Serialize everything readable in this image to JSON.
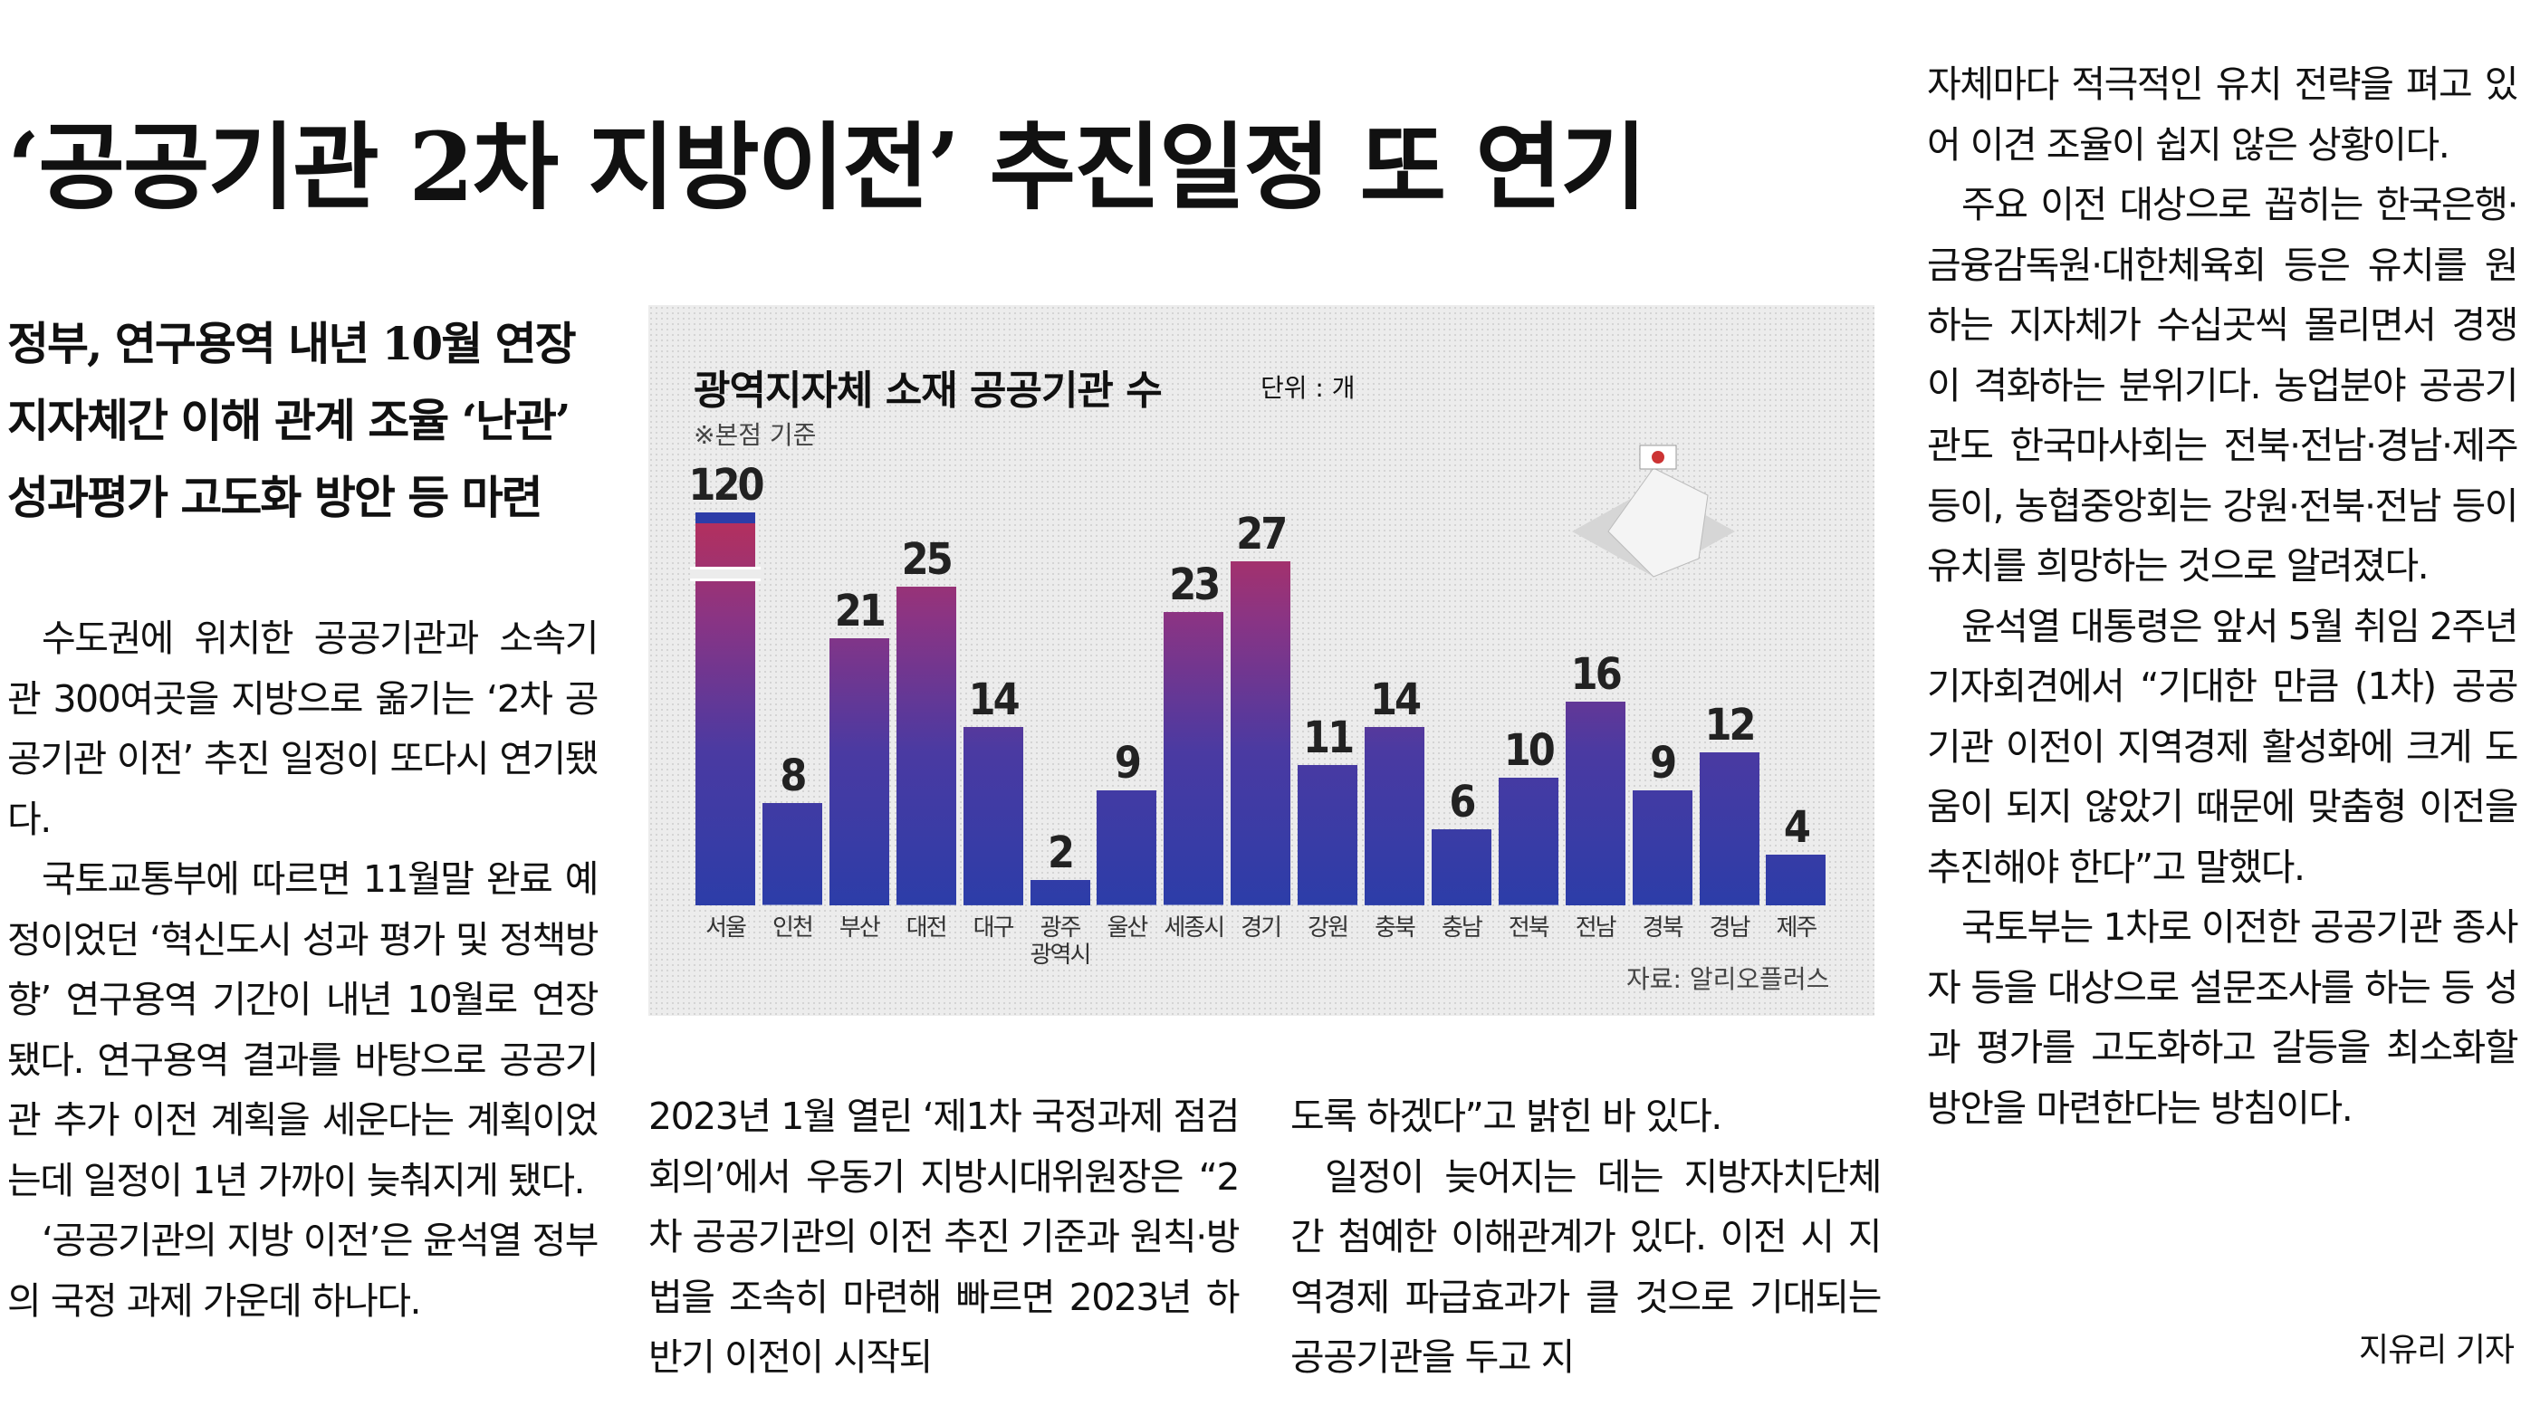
{
  "headline": "‘공공기관 2차 지방이전’ 추진일정 또 연기",
  "subheads": [
    "정부, 연구용역 내년 10월 연장",
    "지자체간 이해 관계 조율 ‘난관’",
    "성과평가 고도화 방안 등 마련"
  ],
  "columns": [
    [
      "수도권에 위치한 공공기관과 소속기관 300여곳을 지방으로 옮기는 ‘2차 공공기관 이전’ 추진 일정이 또다시 연기됐다.",
      "국토교통부에 따르면 11월말 완료 예정이었던 ‘혁신도시 성과 평가 및 정책방향’ 연구용역 기간이 내년 10월로 연장됐다. 연구용역 결과를 바탕으로 공공기관 추가 이전 계획을 세운다는 계획이었는데 일정이 1년 가까이 늦춰지게 됐다.",
      "‘공공기관의 지방 이전’은 윤석열 정부의 국정 과제 가운데 하나다."
    ],
    [
      "2023년 1월 열린 ‘제1차 국정과제 점검회의’에서 우동기 지방시대위원장은 “2차 공공기관의 이전 추진 기준과 원칙·방법을 조속히 마련해 빠르면 2023년 하반기 이전이 시작되"
    ],
    [
      "도록 하겠다”고 밝힌 바 있다.",
      "일정이 늦어지는 데는 지방자치단체간 첨예한 이해관계가 있다. 이전 시 지역경제 파급효과가 클 것으로 기대되는 공공기관을 두고 지"
    ],
    [
      "자체마다 적극적인 유치 전략을 펴고 있어 이견 조율이 쉽지 않은 상황이다.",
      "주요 이전 대상으로 꼽히는 한국은행·금융감독원·대한체육회 등은 유치를 원하는 지자체가 수십곳씩 몰리면서 경쟁이 격화하는 분위기다. 농업분야 공공기관도 한국마사회는 전북·전남·경남·제주 등이, 농협중앙회는 강원·전북·전남 등이 유치를 희망하는 것으로 알려졌다.",
      "윤석열 대통령은 앞서 5월 취임 2주년 기자회견에서 “기대한 만큼 (1차) 공공기관 이전이 지역경제 활성화에 크게 도움이 되지 않았기 때문에 맞춤형 이전을 추진해야 한다”고 말했다.",
      "국토부는 1차로 이전한 공공기관 종사자 등을 대상으로 설문조사를 하는 등 성과 평가를 고도화하고 갈등을 최소화할 방안을 마련한다는 방침이다."
    ]
  ],
  "byline": "지유리 기자",
  "chart_data": {
    "type": "bar",
    "title": "광역지자체 소재 공공기관 수",
    "unit": "단위 : 개",
    "note": "※본점 기준",
    "source": "자료: 알리오플러스",
    "categories": [
      "서울",
      "인천",
      "부산",
      "대전",
      "대구",
      "광주 광역시",
      "울산",
      "세종시",
      "경기",
      "강원",
      "충북",
      "충남",
      "전북",
      "전남",
      "경북",
      "경남",
      "제주"
    ],
    "values": [
      120,
      8,
      21,
      25,
      14,
      2,
      9,
      23,
      27,
      11,
      14,
      6,
      10,
      16,
      9,
      12,
      4
    ],
    "ylim": [
      0,
      30
    ],
    "axis_break": true
  }
}
